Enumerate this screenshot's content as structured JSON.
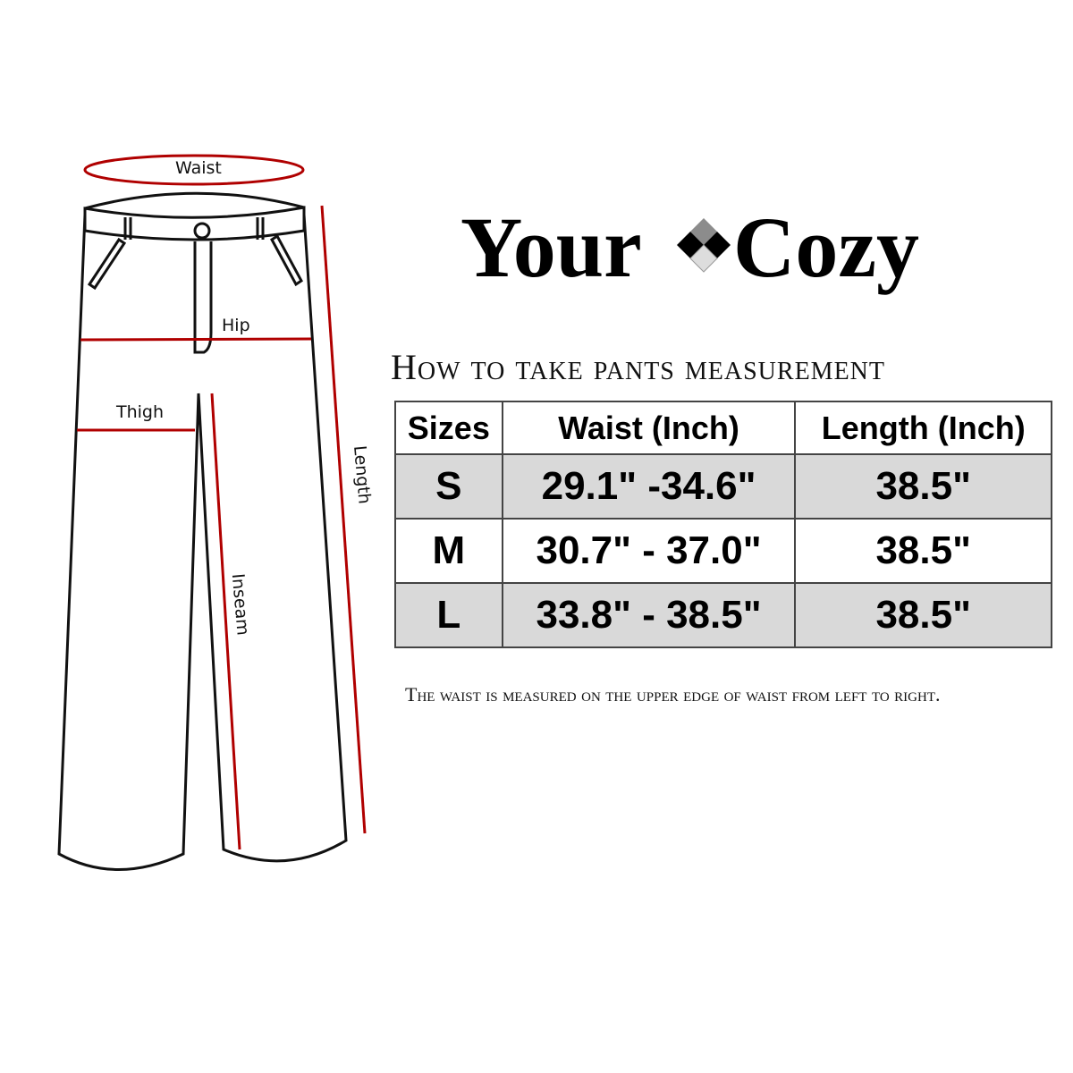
{
  "diagram": {
    "labels": {
      "waist": "Waist",
      "hip": "Hip",
      "thigh": "Thigh",
      "length": "Length",
      "inseam": "Inseam"
    },
    "measure_line_color": "#b00000"
  },
  "logo": {
    "word1": "Your",
    "word2": "Cozy",
    "alt": "YourCozy"
  },
  "title": "How to take pants measurement",
  "size_table": {
    "headers": [
      "Sizes",
      "Waist (Inch)",
      "Length (Inch)"
    ],
    "rows": [
      {
        "size": "S",
        "waist": "29.1\" -34.6\"",
        "length": "38.5\""
      },
      {
        "size": "M",
        "waist": "30.7\" - 37.0\"",
        "length": "38.5\""
      },
      {
        "size": "L",
        "waist": "33.8\" - 38.5\"",
        "length": "38.5\""
      }
    ],
    "shade_color": "#d9d9d9"
  },
  "note": "The waist is measured on the upper edge of waist from left to right."
}
